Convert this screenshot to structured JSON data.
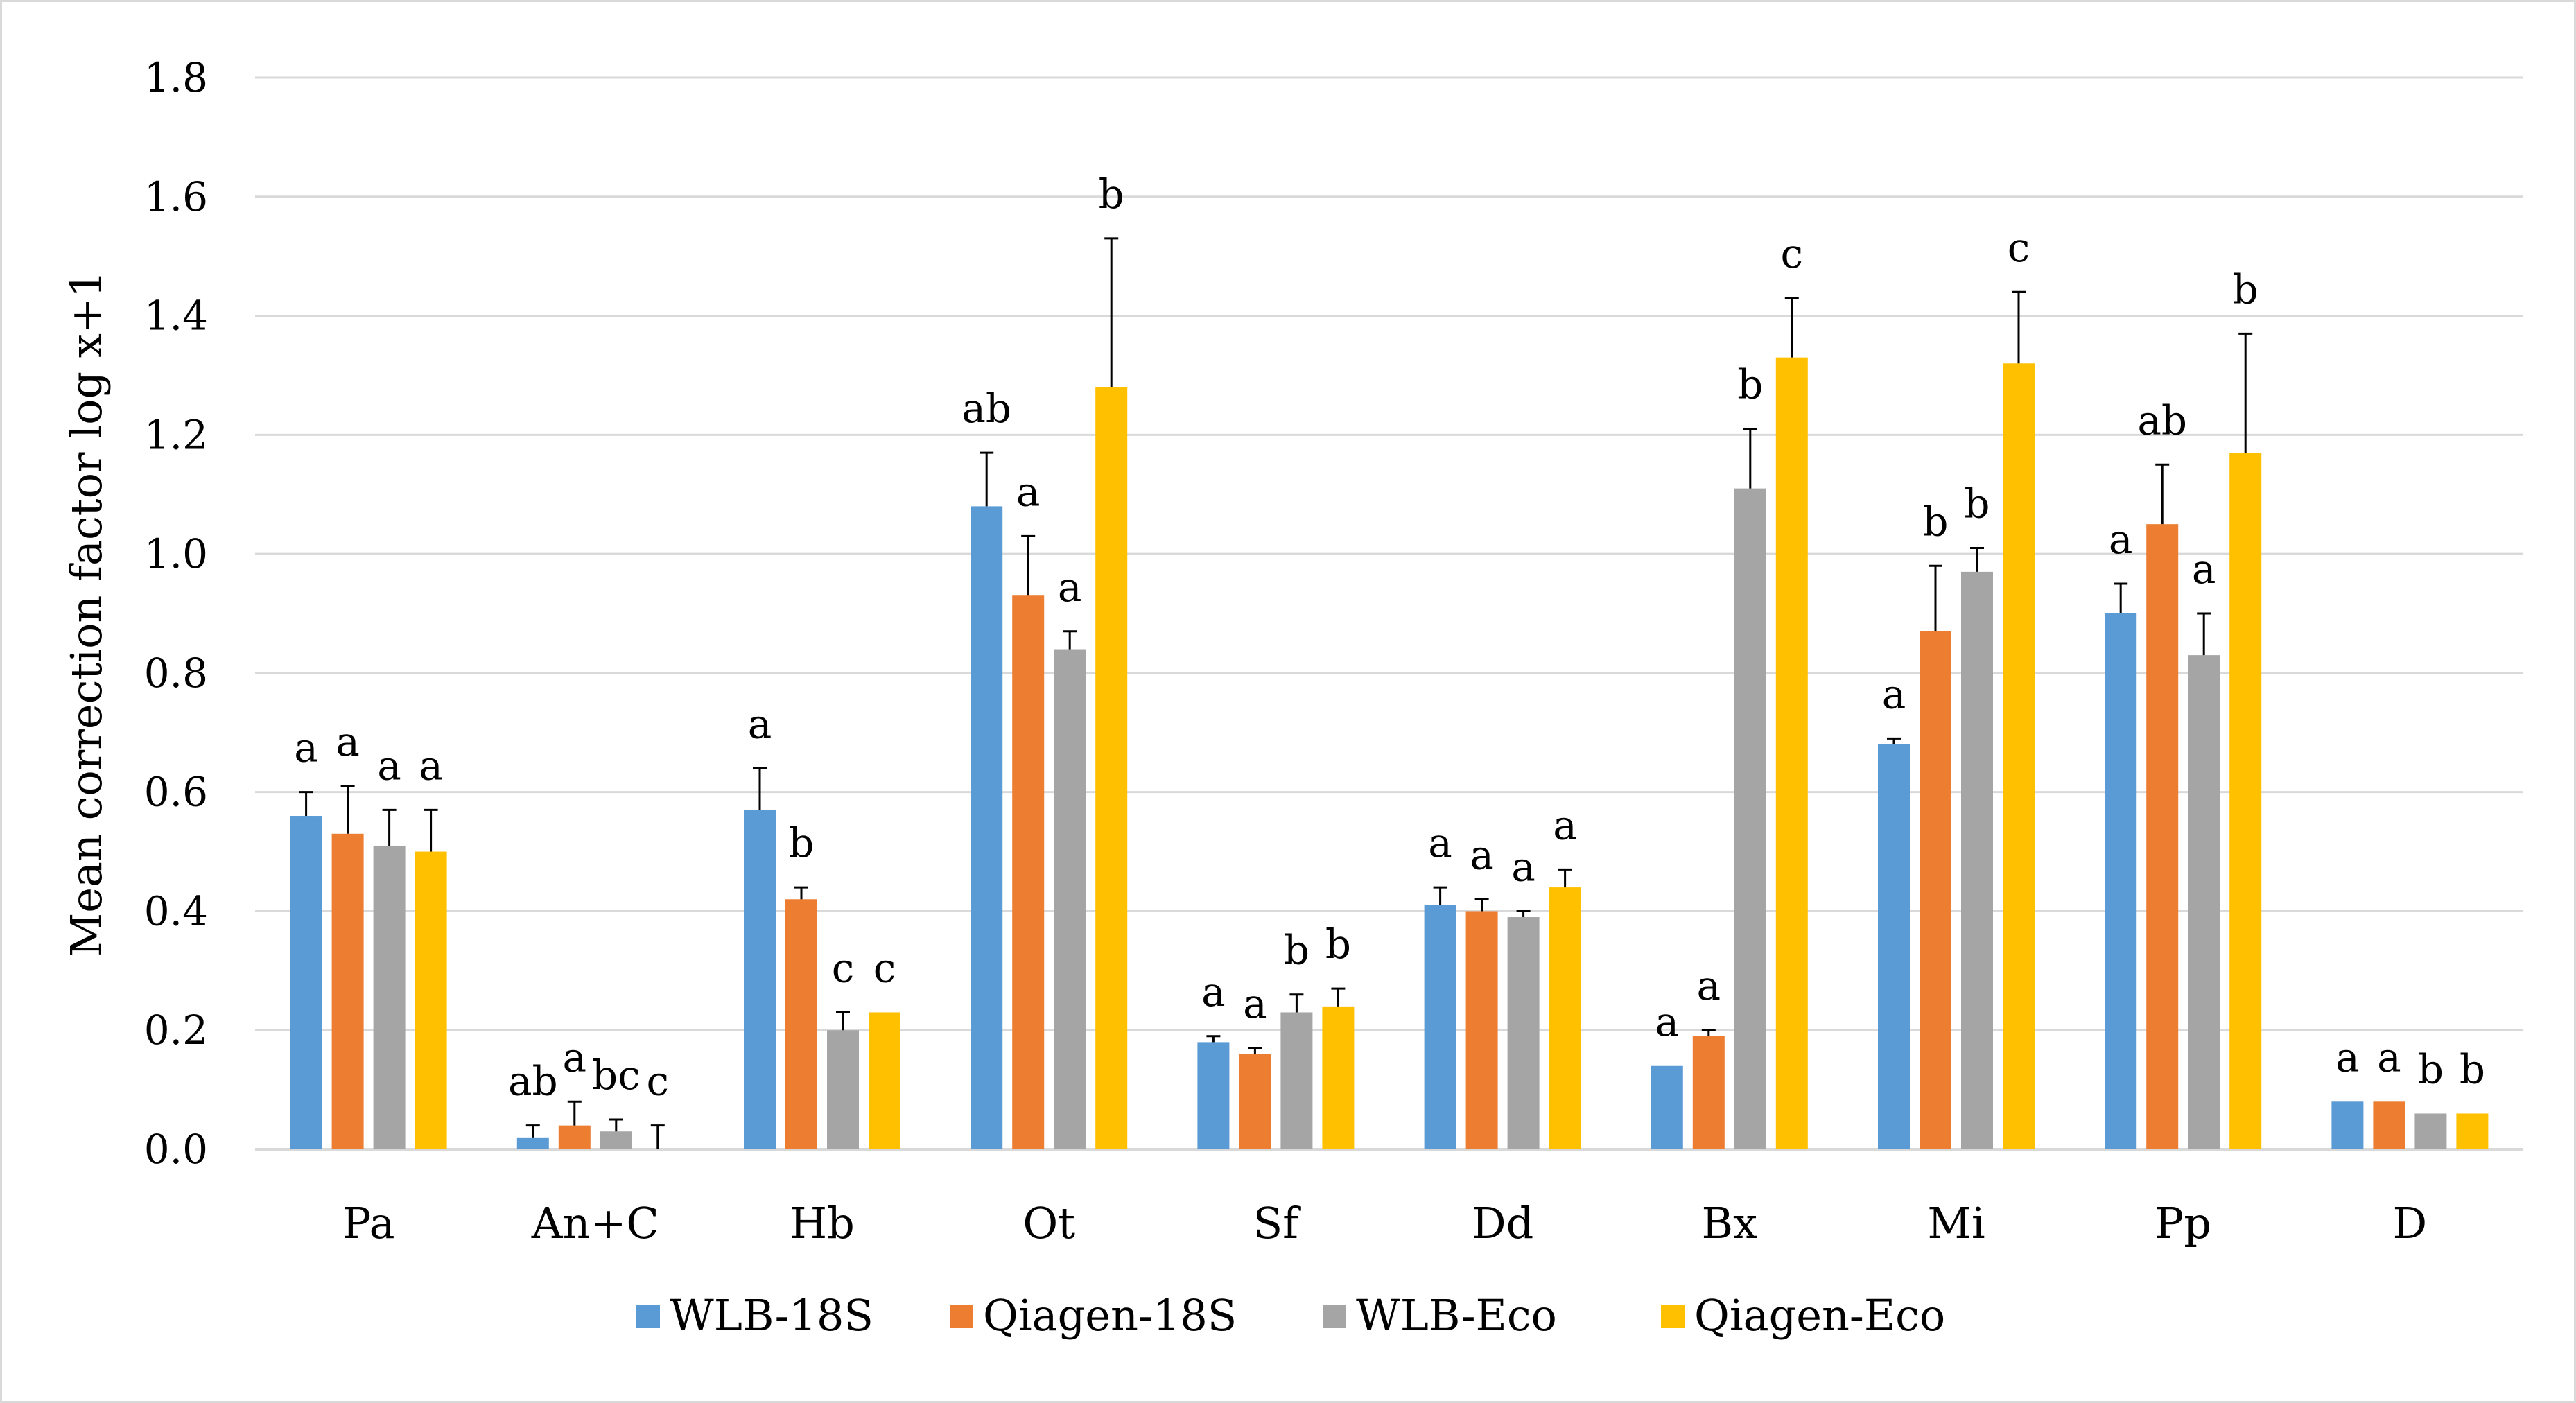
{
  "chart_data": {
    "type": "bar",
    "title": "",
    "xlabel": "",
    "ylabel": "Mean correction factor log x+1",
    "ylim": [
      0,
      1.8
    ],
    "yticks": [
      "0.0",
      "0.2",
      "0.4",
      "0.6",
      "0.8",
      "1.0",
      "1.2",
      "1.4",
      "1.6",
      "1.8"
    ],
    "grid": true,
    "legend_position": "bottom",
    "categories": [
      "Pa",
      "An+C",
      "Hb",
      "Ot",
      "Sf",
      "Dd",
      "Bx",
      "Mi",
      "Pp",
      "D"
    ],
    "series": [
      {
        "name": "WLB-18S",
        "color": "#5B9BD5",
        "values": [
          0.56,
          0.02,
          0.57,
          1.08,
          0.18,
          0.41,
          0.14,
          0.68,
          0.9,
          0.08
        ],
        "errors": [
          0.04,
          0.02,
          0.07,
          0.09,
          0.01,
          0.03,
          0.0,
          0.01,
          0.05,
          0.0
        ],
        "labels": [
          "a",
          "ab",
          "a",
          "ab",
          "a",
          "a",
          "a",
          "a",
          "a",
          "a"
        ]
      },
      {
        "name": "Qiagen-18S",
        "color": "#ED7D31",
        "values": [
          0.53,
          0.04,
          0.42,
          0.93,
          0.16,
          0.4,
          0.19,
          0.87,
          1.05,
          0.08
        ],
        "errors": [
          0.08,
          0.04,
          0.02,
          0.1,
          0.01,
          0.02,
          0.01,
          0.11,
          0.1,
          0.0
        ],
        "labels": [
          "a",
          "a",
          "b",
          "a",
          "a",
          "a",
          "a",
          "b",
          "ab",
          "a"
        ]
      },
      {
        "name": "WLB-Eco",
        "color": "#A5A5A5",
        "values": [
          0.51,
          0.03,
          0.2,
          0.84,
          0.23,
          0.39,
          1.11,
          0.97,
          0.83,
          0.06
        ],
        "errors": [
          0.06,
          0.02,
          0.03,
          0.03,
          0.03,
          0.01,
          0.1,
          0.04,
          0.07,
          0.0
        ],
        "labels": [
          "a",
          "bc",
          "c",
          "a",
          "b",
          "a",
          "b",
          "b",
          "a",
          "b"
        ]
      },
      {
        "name": "Qiagen-Eco",
        "color": "#FFC000",
        "values": [
          0.5,
          0.0,
          0.23,
          1.28,
          0.24,
          0.44,
          1.33,
          1.32,
          1.17,
          0.06
        ],
        "errors": [
          0.07,
          0.04,
          0.0,
          0.25,
          0.03,
          0.03,
          0.1,
          0.12,
          0.2,
          0.0
        ],
        "labels": [
          "a",
          "c",
          "c",
          "b",
          "b",
          "a",
          "c",
          "c",
          "b",
          "b"
        ]
      }
    ]
  }
}
